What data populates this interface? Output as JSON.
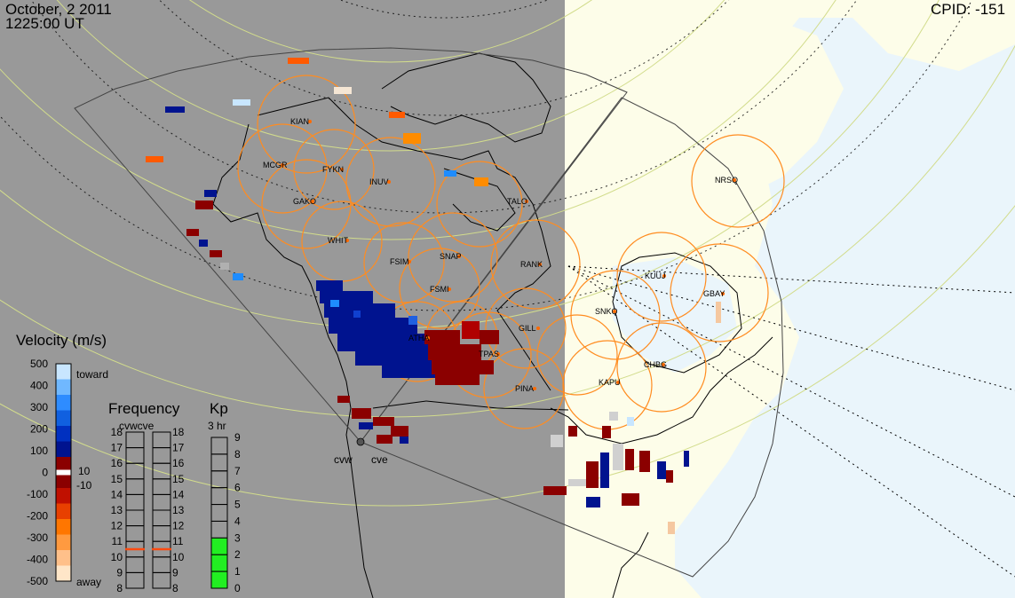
{
  "header": {
    "date": "October, 2 2011",
    "time": "1225:00 UT",
    "cpid": "CPID:  -151"
  },
  "stations": [
    "KIAN",
    "MCGR",
    "FYKN",
    "INUV",
    "GAKO",
    "WHIT",
    "TALO",
    "FSIM",
    "SNAP",
    "RANK",
    "FSMI",
    "GILL",
    "ATHA",
    "TPAS",
    "PINA",
    "KUUJ",
    "GBAY",
    "SNKQ",
    "CHBG",
    "KAPU",
    "NRSQ"
  ],
  "radars": [
    "cvw",
    "cve"
  ],
  "velocity_scale": {
    "title": "Velocity (m/s)",
    "ticks": [
      "500",
      "400",
      "300",
      "200",
      "100",
      "0",
      "-100",
      "-200",
      "-300",
      "-400",
      "-500"
    ],
    "toward_label": "toward",
    "away_label": "away",
    "threshold_pos": "10",
    "threshold_neg": "-10",
    "colors": {
      "toward_light": "#c8e6ff",
      "toward_mid": "#1e8cff",
      "toward_dark": "#00138f",
      "away_dark": "#8b0000",
      "away_mid": "#ff5a00",
      "away_light": "#ffe6c8"
    }
  },
  "frequency": {
    "title": "Frequency",
    "subtitle": "cvwcve",
    "ticks": [
      "18",
      "17",
      "16",
      "15",
      "14",
      "13",
      "12",
      "11",
      "10",
      "9",
      "8"
    ],
    "cvw_mhz": 10.5,
    "cve_mhz": 10.5,
    "marker_color": "#ff4a10"
  },
  "kp": {
    "title": "Kp",
    "subtitle": "3 hr",
    "ticks": [
      "9",
      "8",
      "7",
      "6",
      "5",
      "4",
      "3",
      "2",
      "1",
      "0"
    ],
    "value": 3,
    "fill_color": "#22ee22"
  },
  "colors": {
    "night": "#999999",
    "land_day": "#fdfde9",
    "ocean_day": "#eaf5fb",
    "fov_circle": "#ff8c20",
    "grid": "#d2dc8c"
  }
}
